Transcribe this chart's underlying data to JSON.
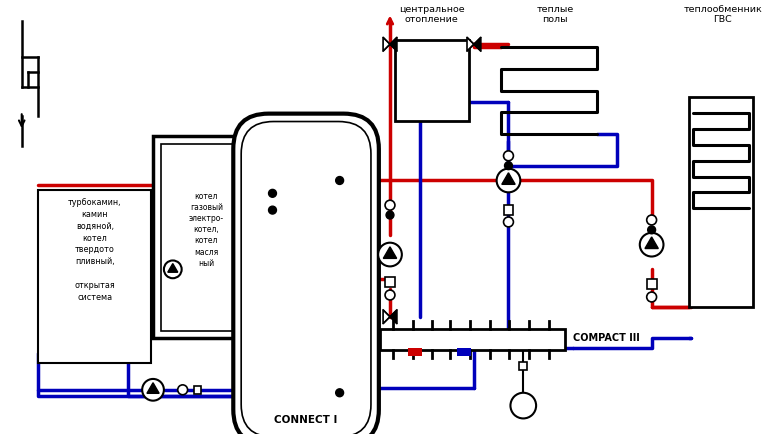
{
  "bg_color": "#ffffff",
  "red": "#cc0000",
  "blue": "#0000bb",
  "black": "#000000",
  "lw": 2.5,
  "labels": {
    "central_heating": "центральное\nотопление",
    "warm_floors": "теплые\nполы",
    "heat_exchanger": "теплообменник\nГВС",
    "connect_i": "CONNECT I",
    "compact_iii": "COMPACT III",
    "boiler_label": "котел\nгазовый\nэлектро-\nкотел,\nкотел\nмасля\nный",
    "left_label": "турбокамин,\nкамин\nводяной,\nкотел\nтвердото\nпливный,\n\nоткрытая\nсистема"
  }
}
